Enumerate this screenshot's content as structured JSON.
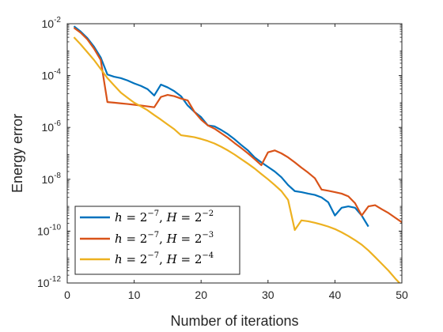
{
  "chart_data": {
    "type": "line",
    "xlabel": "Number of iterations",
    "ylabel": "Energy error",
    "xlim": [
      0,
      50
    ],
    "ylim": [
      1e-12,
      0.01
    ],
    "yscale": "log",
    "grid": false,
    "legend_position": "bottom-left",
    "x_ticks": [
      0,
      10,
      20,
      30,
      40,
      50
    ],
    "y_ticks": [
      {
        "value": 1e-12,
        "base": "10",
        "exp": "-12"
      },
      {
        "value": 1e-10,
        "base": "10",
        "exp": "-10"
      },
      {
        "value": 1e-08,
        "base": "10",
        "exp": "-8"
      },
      {
        "value": 1e-06,
        "base": "10",
        "exp": "-6"
      },
      {
        "value": 0.0001,
        "base": "10",
        "exp": "-4"
      },
      {
        "value": 0.01,
        "base": "10",
        "exp": "-2"
      }
    ],
    "series": [
      {
        "name": "h = 2^{-7}, H = 2^{-2}",
        "legend": {
          "h_label": "h",
          "h_base": "2",
          "h_exp": "−7",
          "H_label": "H",
          "H_base": "2",
          "H_exp": "−2"
        },
        "color": "#0072BD",
        "x": [
          1,
          2,
          3,
          4,
          5,
          6,
          7,
          8,
          9,
          10,
          11,
          12,
          13,
          14,
          15,
          16,
          17,
          18,
          19,
          20,
          21,
          22,
          23,
          24,
          25,
          26,
          27,
          28,
          29,
          30,
          31,
          32,
          33,
          34,
          35,
          36,
          37,
          38,
          39,
          40,
          41,
          42,
          43,
          44,
          45
        ],
        "y": [
          0.008,
          0.005,
          0.0028,
          0.0013,
          0.0005,
          0.00011,
          9e-05,
          8e-05,
          6.5e-05,
          5e-05,
          4e-05,
          3e-05,
          1.7e-05,
          4.5e-05,
          3.5e-05,
          2.5e-05,
          1.6e-05,
          7e-06,
          4e-06,
          2.5e-06,
          1.2e-06,
          1.1e-06,
          8e-07,
          5.5e-07,
          3.5e-07,
          2.1e-07,
          1.3e-07,
          7e-08,
          4.5e-08,
          3e-08,
          2e-08,
          1.2e-08,
          6e-09,
          3.5e-09,
          3.2e-09,
          2.8e-09,
          2.5e-09,
          2e-09,
          1.3e-09,
          4e-10,
          8e-10,
          9e-10,
          8e-10,
          4e-10,
          1.5e-10
        ]
      },
      {
        "name": "h = 2^{-7}, H = 2^{-3}",
        "legend": {
          "h_label": "h",
          "h_base": "2",
          "h_exp": "−7",
          "H_label": "H",
          "H_base": "2",
          "H_exp": "−3"
        },
        "color": "#D95319",
        "x": [
          1,
          2,
          3,
          4,
          5,
          6,
          7,
          8,
          9,
          10,
          11,
          12,
          13,
          14,
          15,
          16,
          17,
          18,
          19,
          20,
          21,
          22,
          23,
          24,
          25,
          26,
          27,
          28,
          29,
          30,
          31,
          32,
          33,
          34,
          35,
          36,
          37,
          38,
          39,
          40,
          41,
          42,
          43,
          44,
          45,
          46,
          47,
          48,
          49,
          50
        ],
        "y": [
          0.007,
          0.0045,
          0.0025,
          0.0011,
          0.0004,
          9.5e-06,
          9e-06,
          8.5e-06,
          8e-06,
          7.5e-06,
          7e-06,
          6.5e-06,
          6e-06,
          1.5e-05,
          1.8e-05,
          1.6e-05,
          1.3e-05,
          1.1e-05,
          4e-06,
          2e-06,
          1.2e-06,
          9e-07,
          6e-07,
          4e-07,
          2.5e-07,
          1.6e-07,
          1e-07,
          6e-08,
          3.5e-08,
          1.1e-07,
          1.3e-07,
          1e-07,
          7e-08,
          4.5e-08,
          2.8e-08,
          1.8e-08,
          1.1e-08,
          4e-09,
          3.6e-09,
          3.2e-09,
          2.8e-09,
          2.2e-09,
          1.2e-09,
          4e-10,
          9e-10,
          1e-09,
          7e-10,
          5e-10,
          3.3e-10,
          2.2e-10
        ]
      },
      {
        "name": "h = 2^{-7}, H = 2^{-4}",
        "legend": {
          "h_label": "h",
          "h_base": "2",
          "h_exp": "−7",
          "H_label": "H",
          "H_base": "2",
          "H_exp": "−4"
        },
        "color": "#EDB120",
        "x": [
          1,
          2,
          3,
          4,
          5,
          6,
          7,
          8,
          9,
          10,
          11,
          12,
          13,
          14,
          15,
          16,
          17,
          18,
          19,
          20,
          21,
          22,
          23,
          24,
          25,
          26,
          27,
          28,
          29,
          30,
          31,
          32,
          33,
          34,
          35,
          36,
          37,
          38,
          39,
          40,
          41,
          42,
          43,
          44,
          45,
          46,
          47,
          48,
          49,
          50
        ],
        "y": [
          0.003,
          0.0016,
          0.0008,
          0.0004,
          0.00018,
          8e-05,
          4.2e-05,
          2.2e-05,
          1.4e-05,
          9e-06,
          6.5e-06,
          4.6e-06,
          3e-06,
          2e-06,
          1.3e-06,
          8.5e-07,
          5e-07,
          4.6e-07,
          4.2e-07,
          3.6e-07,
          3e-07,
          2.4e-07,
          1.8e-07,
          1.3e-07,
          9e-08,
          6e-08,
          4e-08,
          2.6e-08,
          1.6e-08,
          1e-08,
          6e-09,
          3.5e-09,
          1.6e-09,
          1.1e-10,
          2.6e-10,
          2.4e-10,
          2.1e-10,
          1.8e-10,
          1.5e-10,
          1.2e-10,
          9e-11,
          6.5e-11,
          4.5e-11,
          3e-11,
          1.8e-11,
          1e-11,
          5.5e-12,
          3e-12,
          1.5e-12,
          8e-13
        ]
      }
    ]
  }
}
